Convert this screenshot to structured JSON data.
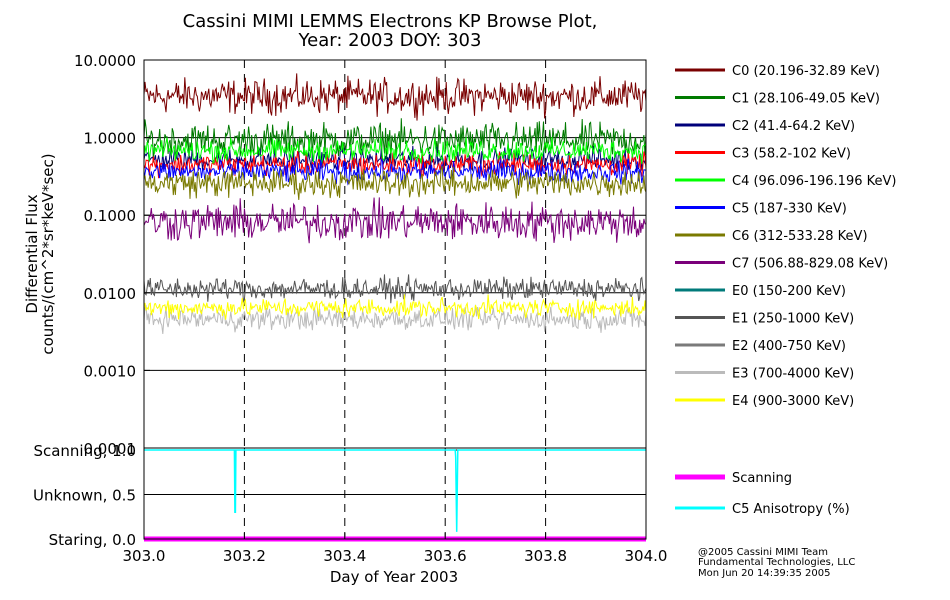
{
  "title": {
    "line1": "Cassini MIMI LEMMS Electrons KP Browse Plot,",
    "line2": "Year: 2003 DOY: 303"
  },
  "credits": {
    "line1": "@2005 Cassini MIMI Team",
    "line2": "Fundamental Technologies, LLC",
    "line3": "Mon Jun 20 14:39:35 2005"
  },
  "chart_data": [
    {
      "type": "line",
      "title": "Cassini MIMI LEMMS Electrons KP Browse Plot, Year: 2003 DOY: 303",
      "xlabel": "",
      "ylabel_line1": "Differential Flux",
      "ylabel_line2": "counts/(cm^2*sr*keV*sec)",
      "yscale": "log",
      "ylim": [
        0.0001,
        10.0
      ],
      "xlim": [
        303.0,
        304.0
      ],
      "ytick_labels": [
        "10.0000",
        "1.0000",
        "0.1000",
        "0.0100",
        "0.0010",
        "0.0001"
      ],
      "ytick_values": [
        10.0,
        1.0,
        0.1,
        0.01,
        0.001,
        0.0001
      ],
      "x_gridlines": [
        303.2,
        303.4,
        303.6,
        303.8
      ],
      "series": [
        {
          "name": "C0 (20.196-32.89 KeV)",
          "color": "#7a0000",
          "base": 3.4,
          "noise": 0.11
        },
        {
          "name": "C1 (28.106-49.05 KeV)",
          "color": "#007a00",
          "base": 0.92,
          "noise": 0.11
        },
        {
          "name": "C2 (41.4-64.2 KeV)",
          "color": "#00007a",
          "base": 0.52,
          "noise": 0.07
        },
        {
          "name": "C3 (58.2-102 KeV)",
          "color": "#ff0000",
          "base": 0.45,
          "noise": 0.07
        },
        {
          "name": "C4 (96.096-196.196 KeV)",
          "color": "#00ff00",
          "base": 0.68,
          "noise": 0.07
        },
        {
          "name": "C5 (187-330 KeV)",
          "color": "#0000ff",
          "base": 0.36,
          "noise": 0.07
        },
        {
          "name": "C6 (312-533.28 KeV)",
          "color": "#7a7a00",
          "base": 0.26,
          "noise": 0.09
        },
        {
          "name": "C7 (506.88-829.08 KeV)",
          "color": "#7a007a",
          "base": 0.082,
          "noise": 0.12
        },
        {
          "name": "E0 (150-200 KeV)",
          "color": "#007a7a",
          "base": null,
          "noise": 0
        },
        {
          "name": "E1 (250-1000 KeV)",
          "color": "#555555",
          "base": 0.0112,
          "noise": 0.07
        },
        {
          "name": "E2 (400-750 KeV)",
          "color": "#7a7a7a",
          "base": null,
          "noise": 0
        },
        {
          "name": "E3 (700-4000 KeV)",
          "color": "#bbbbbb",
          "base": 0.0046,
          "noise": 0.07
        },
        {
          "name": "E4 (900-3000 KeV)",
          "color": "#ffff00",
          "base": 0.0064,
          "noise": 0.06
        }
      ]
    },
    {
      "type": "line",
      "xlabel": "Day of Year 2003",
      "ylabel": "",
      "xlim": [
        303.0,
        304.0
      ],
      "ylim": [
        0.0,
        1.0
      ],
      "xtick_labels": [
        "303.0",
        "303.2",
        "303.4",
        "303.6",
        "303.8",
        "304.0"
      ],
      "xtick_values": [
        303.0,
        303.2,
        303.4,
        303.6,
        303.8,
        304.0
      ],
      "ytick_labels": [
        "Scanning, 1.0",
        "Unknown, 0.5",
        "Staring, 0.0"
      ],
      "ytick_values": [
        1.0,
        0.5,
        0.0
      ],
      "series": [
        {
          "name": "Scanning",
          "color": "#ff00ff",
          "x": [
            303.0,
            304.0
          ],
          "y": [
            0.0,
            0.0
          ]
        },
        {
          "name": "C5 Anisotropy (%)",
          "color": "#00ffff",
          "x": [
            303.0,
            303.18,
            303.181,
            303.182,
            303.183,
            303.62,
            303.621,
            303.623,
            303.625,
            304.0
          ],
          "y": [
            1.0,
            1.0,
            0.3,
            0.3,
            1.0,
            1.0,
            0.92,
            0.08,
            1.0,
            1.0
          ]
        }
      ]
    }
  ]
}
